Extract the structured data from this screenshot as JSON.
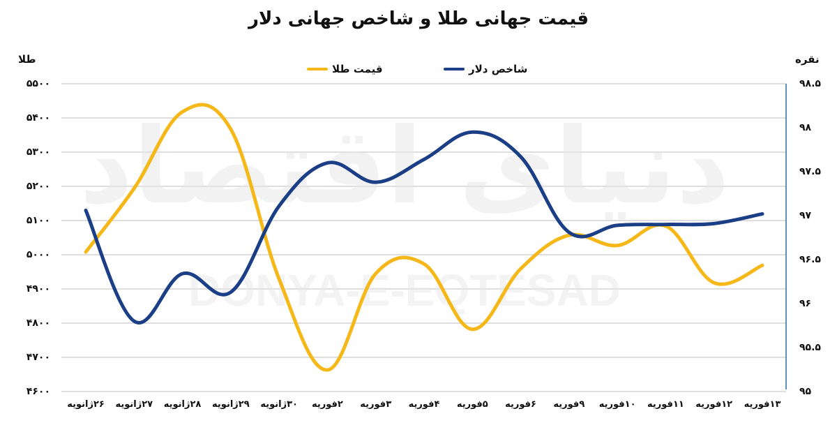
{
  "title": "قیمت جهانی طلا و شاخص جهانی دلار",
  "watermark": {
    "arabic": "دنیای اقتصاد",
    "latin": "DONYA-E-EQTESAD"
  },
  "axes": {
    "left_label": "طلا",
    "right_label": "نقره",
    "left_ticks": [
      "۵۵۰۰",
      "۵۴۰۰",
      "۵۳۰۰",
      "۵۲۰۰",
      "۵۱۰۰",
      "۵۰۰۰",
      "۴۹۰۰",
      "۴۸۰۰",
      "۴۷۰۰",
      "۴۶۰۰"
    ],
    "right_ticks": [
      "۹۸.۵",
      "۹۸",
      "۹۷.۵",
      "۹۷",
      "۹۶.۵",
      "۹۶",
      "۹۵.۵",
      "۹۵"
    ]
  },
  "legend": {
    "dollar": {
      "label": "شاخص دلار",
      "color": "#1b3f86"
    },
    "gold": {
      "label": "قیمت طلا",
      "color": "#f6b718"
    }
  },
  "x_labels": [
    "۲۶ژانویه",
    "۲۷ژانویه",
    "۲۸ژانویه",
    "۲۹ژانویه",
    "۳۰ژانویه",
    "۲فوریه",
    "۳فوریه",
    "۴فوریه",
    "۵فوریه",
    "۶فوریه",
    "۹فوریه",
    "۱۰فوریه",
    "۱۱فوریه",
    "۱۲فوریه",
    "۱۳فوریه"
  ],
  "chart_data": {
    "type": "line",
    "title": "قیمت جهانی طلا و شاخص جهانی دلار",
    "categories": [
      "26 Jan",
      "27 Jan",
      "28 Jan",
      "29 Jan",
      "30 Jan",
      "2 Feb",
      "3 Feb",
      "4 Feb",
      "5 Feb",
      "6 Feb",
      "9 Feb",
      "10 Feb",
      "11 Feb",
      "12 Feb",
      "13 Feb"
    ],
    "series": [
      {
        "name": "قیمت طلا",
        "axis": "left",
        "color": "#f6b718",
        "values": [
          5008,
          5194,
          5418,
          5367,
          4929,
          4663,
          4945,
          4973,
          4782,
          4959,
          5057,
          5027,
          5084,
          4918,
          4969
        ]
      },
      {
        "name": "شاخص دلار",
        "axis": "right",
        "color": "#1b3f86",
        "values": [
          97.06,
          95.8,
          96.34,
          96.13,
          97.11,
          97.6,
          97.38,
          97.64,
          97.95,
          97.67,
          96.81,
          96.89,
          96.9,
          96.91,
          97.02
        ]
      }
    ],
    "xlabel": "",
    "ylabel_left": "طلا",
    "ylabel_right": "نقره",
    "ylim_left": [
      4600,
      5500
    ],
    "ylim_right": [
      95,
      98.5
    ],
    "grid": true,
    "legend_position": "top",
    "smooth": true
  }
}
